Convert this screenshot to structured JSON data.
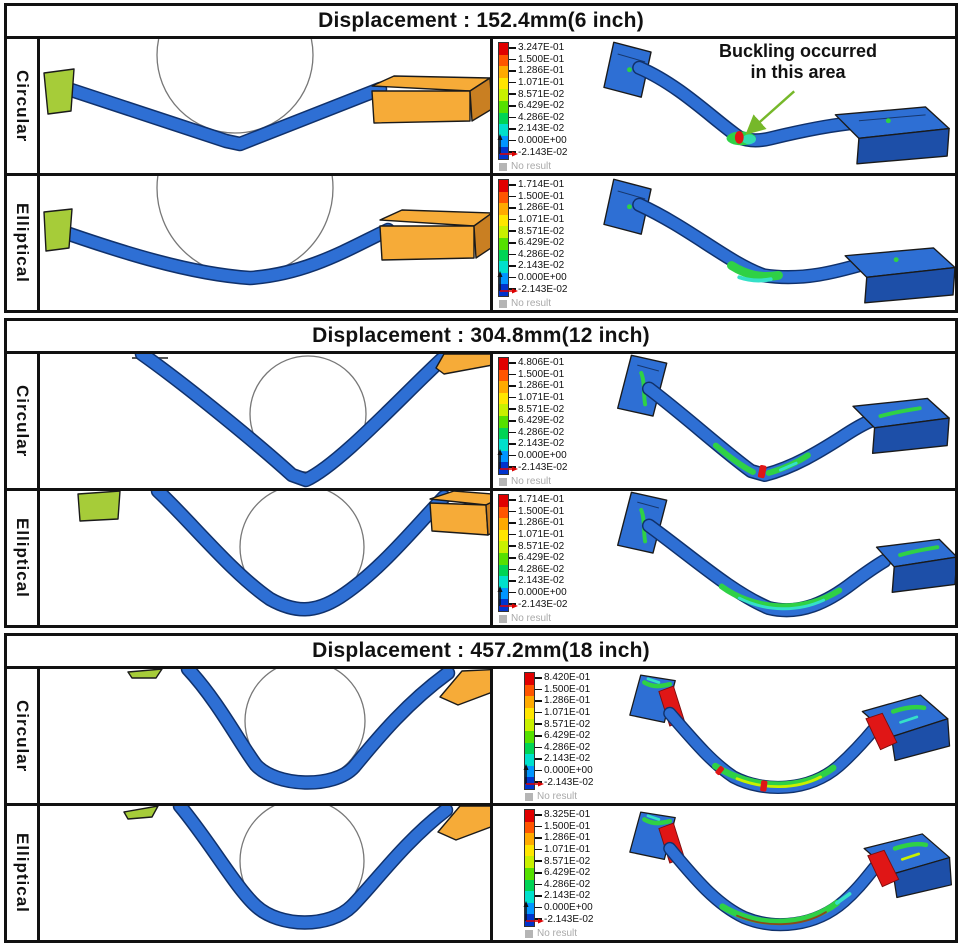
{
  "sections": [
    {
      "title": "Displacement : 152.4mm(6 inch)",
      "rows": [
        {
          "label": "Circular",
          "legend_values": [
            "3.247E-01",
            "1.500E-01",
            "1.286E-01",
            "1.071E-01",
            "8.571E-02",
            "6.429E-02",
            "4.286E-02",
            "2.143E-02",
            "0.000E+00",
            "-2.143E-02"
          ]
        },
        {
          "label": "Elliptical",
          "legend_values": [
            "1.714E-01",
            "1.500E-01",
            "1.286E-01",
            "1.071E-01",
            "8.571E-02",
            "6.429E-02",
            "4.286E-02",
            "2.143E-02",
            "0.000E+00",
            "-2.143E-02"
          ]
        }
      ]
    },
    {
      "title": "Displacement : 304.8mm(12 inch)",
      "rows": [
        {
          "label": "Circular",
          "legend_values": [
            "4.806E-01",
            "1.500E-01",
            "1.286E-01",
            "1.071E-01",
            "8.571E-02",
            "6.429E-02",
            "4.286E-02",
            "2.143E-02",
            "0.000E+00",
            "-2.143E-02"
          ]
        },
        {
          "label": "Elliptical",
          "legend_values": [
            "1.714E-01",
            "1.500E-01",
            "1.286E-01",
            "1.071E-01",
            "8.571E-02",
            "6.429E-02",
            "4.286E-02",
            "2.143E-02",
            "0.000E+00",
            "-2.143E-02"
          ]
        }
      ]
    },
    {
      "title": "Displacement : 457.2mm(18 inch)",
      "rows": [
        {
          "label": "Circular",
          "legend_values": [
            "8.420E-01",
            "1.500E-01",
            "1.286E-01",
            "1.071E-01",
            "8.571E-02",
            "6.429E-02",
            "4.286E-02",
            "2.143E-02",
            "0.000E+00",
            "-2.143E-02"
          ]
        },
        {
          "label": "Elliptical",
          "legend_values": [
            "8.325E-01",
            "1.500E-01",
            "1.286E-01",
            "1.071E-01",
            "8.571E-02",
            "6.429E-02",
            "4.286E-02",
            "2.143E-02",
            "0.000E+00",
            "-2.143E-02"
          ]
        }
      ]
    }
  ],
  "annotation": {
    "line1": "Buckling occurred",
    "line2": "in this area"
  },
  "legend": {
    "no_result_label": "No result",
    "colors": [
      "#e00000",
      "#ff5500",
      "#ffaa00",
      "#ffe600",
      "#c8f000",
      "#55e000",
      "#00d455",
      "#00e0cc",
      "#0095ff",
      "#0033cc"
    ]
  },
  "colors": {
    "tube_blue": "#2e6fd4",
    "clamp_green": "#a6cc39",
    "pusher_orange": "#f6ab38",
    "contour_red": "#e01616",
    "contour_green": "#2fd146",
    "contour_cyan": "#35e0c8",
    "arrow_green": "#76b82a"
  }
}
